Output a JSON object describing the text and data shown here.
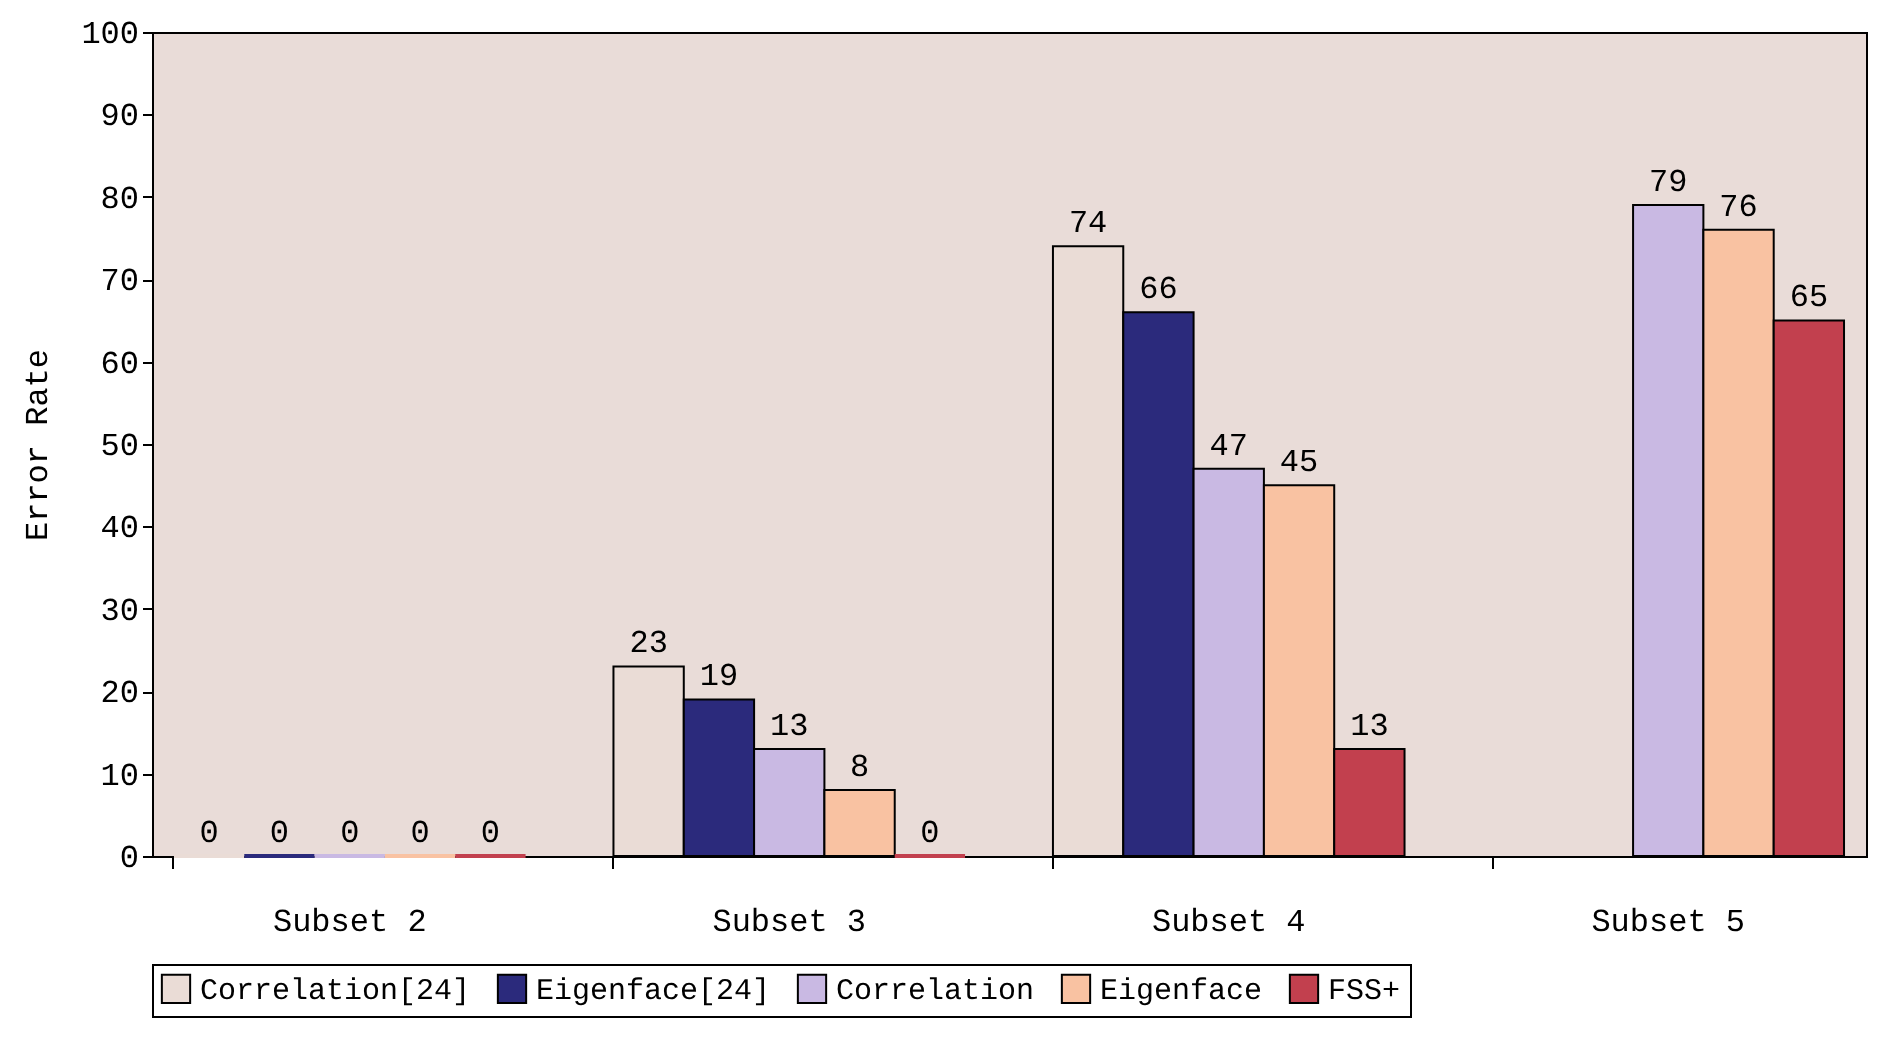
{
  "chart_data": {
    "type": "bar",
    "ylabel": "Error Rate",
    "categories": [
      "Subset 2",
      "Subset 3",
      "Subset 4",
      "Subset 5"
    ],
    "series": [
      {
        "name": "Correlation[24]",
        "color": "#eadcd6",
        "values": [
          0,
          23,
          74,
          null
        ]
      },
      {
        "name": "Eigenface[24]",
        "color": "#2b2a7c",
        "values": [
          0,
          19,
          66,
          null
        ]
      },
      {
        "name": "Correlation",
        "color": "#c9b9e3",
        "values": [
          0,
          13,
          47,
          79
        ]
      },
      {
        "name": "Eigenface",
        "color": "#f9c2a2",
        "values": [
          0,
          8,
          45,
          76
        ]
      },
      {
        "name": "FSS+",
        "color": "#c2404e",
        "values": [
          0,
          0,
          13,
          65
        ]
      }
    ],
    "ylim": [
      0,
      100
    ],
    "yticks": [
      0,
      10,
      20,
      30,
      40,
      50,
      60,
      70,
      80,
      90,
      100
    ],
    "data_labels": true,
    "legend": "bottom"
  }
}
